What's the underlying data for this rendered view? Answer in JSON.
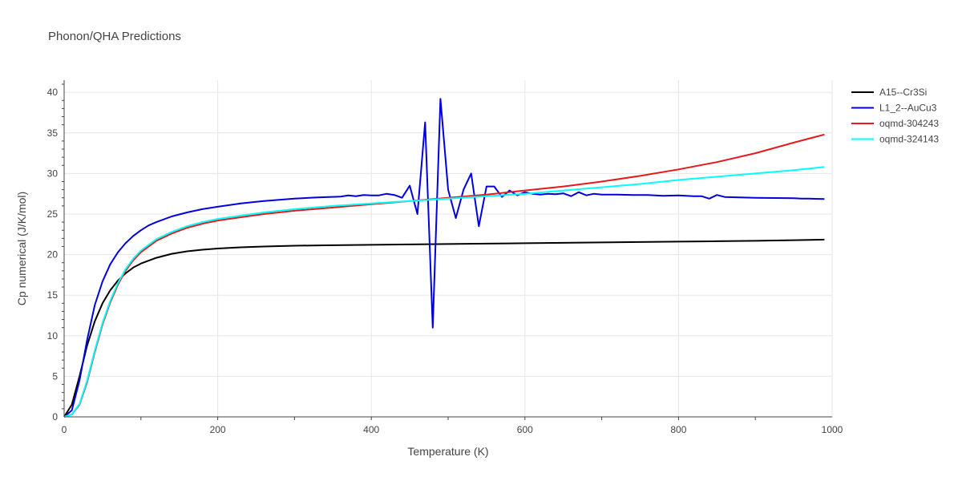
{
  "chart_data": {
    "type": "line",
    "title": "Phonon/QHA Predictions",
    "xlabel": "Temperature (K)",
    "ylabel": "Cp numerical (J/K/mol)",
    "xlim": [
      0,
      1000
    ],
    "ylim": [
      0,
      41.5
    ],
    "xticks": [
      0,
      200,
      400,
      600,
      800,
      1000
    ],
    "yticks": [
      0,
      5,
      10,
      15,
      20,
      25,
      30,
      35,
      40
    ],
    "grid": true,
    "legend_position": "top-right",
    "series": [
      {
        "name": "A15--Cr3Si",
        "color": "#000000",
        "x": [
          0,
          10,
          20,
          30,
          40,
          50,
          60,
          70,
          80,
          90,
          100,
          120,
          140,
          160,
          180,
          200,
          230,
          260,
          300,
          340,
          400,
          450,
          500,
          550,
          600,
          650,
          700,
          750,
          800,
          850,
          900,
          950,
          990
        ],
        "y": [
          0,
          1.5,
          5.0,
          8.8,
          11.8,
          14.0,
          15.6,
          16.8,
          17.7,
          18.4,
          18.9,
          19.6,
          20.1,
          20.4,
          20.6,
          20.75,
          20.9,
          21.0,
          21.1,
          21.15,
          21.2,
          21.25,
          21.3,
          21.35,
          21.4,
          21.45,
          21.5,
          21.55,
          21.6,
          21.65,
          21.7,
          21.78,
          21.85
        ]
      },
      {
        "name": "L1_2--AuCu3",
        "color": "#0000dd",
        "x": [
          0,
          10,
          20,
          30,
          40,
          50,
          60,
          70,
          80,
          90,
          100,
          110,
          120,
          140,
          160,
          180,
          200,
          230,
          260,
          300,
          330,
          360,
          370,
          380,
          390,
          400,
          410,
          420,
          430,
          440,
          450,
          460,
          470,
          480,
          490,
          500,
          510,
          520,
          530,
          540,
          550,
          560,
          570,
          580,
          590,
          600,
          610,
          620,
          630,
          640,
          650,
          660,
          670,
          680,
          690,
          700,
          720,
          740,
          760,
          780,
          800,
          820,
          830,
          840,
          850,
          860,
          900,
          950,
          960,
          970,
          990
        ],
        "y": [
          0,
          0.8,
          4.5,
          9.5,
          13.8,
          16.7,
          18.8,
          20.3,
          21.4,
          22.3,
          23.0,
          23.6,
          24.0,
          24.7,
          25.2,
          25.6,
          25.9,
          26.3,
          26.6,
          26.9,
          27.05,
          27.15,
          27.3,
          27.2,
          27.35,
          27.3,
          27.3,
          27.5,
          27.35,
          27.0,
          28.5,
          25.0,
          36.3,
          11.0,
          39.2,
          28.0,
          24.5,
          28.0,
          30.0,
          23.5,
          28.4,
          28.4,
          27.1,
          27.9,
          27.3,
          27.7,
          27.5,
          27.4,
          27.5,
          27.45,
          27.55,
          27.2,
          27.7,
          27.3,
          27.5,
          27.4,
          27.4,
          27.35,
          27.35,
          27.25,
          27.3,
          27.2,
          27.2,
          26.9,
          27.35,
          27.1,
          27.0,
          26.95,
          26.9,
          26.9,
          26.85
        ]
      },
      {
        "name": "oqmd-304243",
        "color": "#e41a1c",
        "x": [
          0,
          10,
          20,
          30,
          40,
          50,
          60,
          70,
          80,
          90,
          100,
          120,
          140,
          160,
          180,
          200,
          230,
          260,
          300,
          350,
          400,
          450,
          500,
          550,
          600,
          650,
          700,
          750,
          800,
          850,
          900,
          950,
          990
        ],
        "y": [
          0,
          0.3,
          1.5,
          4.3,
          8.0,
          11.4,
          14.1,
          16.3,
          18.0,
          19.3,
          20.3,
          21.7,
          22.6,
          23.3,
          23.8,
          24.2,
          24.6,
          25.0,
          25.4,
          25.8,
          26.2,
          26.6,
          27.0,
          27.4,
          27.9,
          28.4,
          29.0,
          29.7,
          30.5,
          31.4,
          32.5,
          33.8,
          34.8
        ]
      },
      {
        "name": "oqmd-324143",
        "color": "#00ffff",
        "x": [
          0,
          10,
          20,
          30,
          40,
          50,
          60,
          70,
          80,
          90,
          100,
          120,
          140,
          160,
          180,
          200,
          230,
          260,
          300,
          350,
          400,
          450,
          500,
          550,
          600,
          650,
          700,
          750,
          800,
          850,
          900,
          950,
          990
        ],
        "y": [
          0,
          0.3,
          1.6,
          4.5,
          8.2,
          11.6,
          14.3,
          16.5,
          18.2,
          19.5,
          20.5,
          21.9,
          22.8,
          23.5,
          24.0,
          24.4,
          24.8,
          25.2,
          25.6,
          26.0,
          26.3,
          26.6,
          26.9,
          27.2,
          27.5,
          27.9,
          28.3,
          28.7,
          29.2,
          29.6,
          30.0,
          30.4,
          30.8
        ]
      }
    ]
  }
}
